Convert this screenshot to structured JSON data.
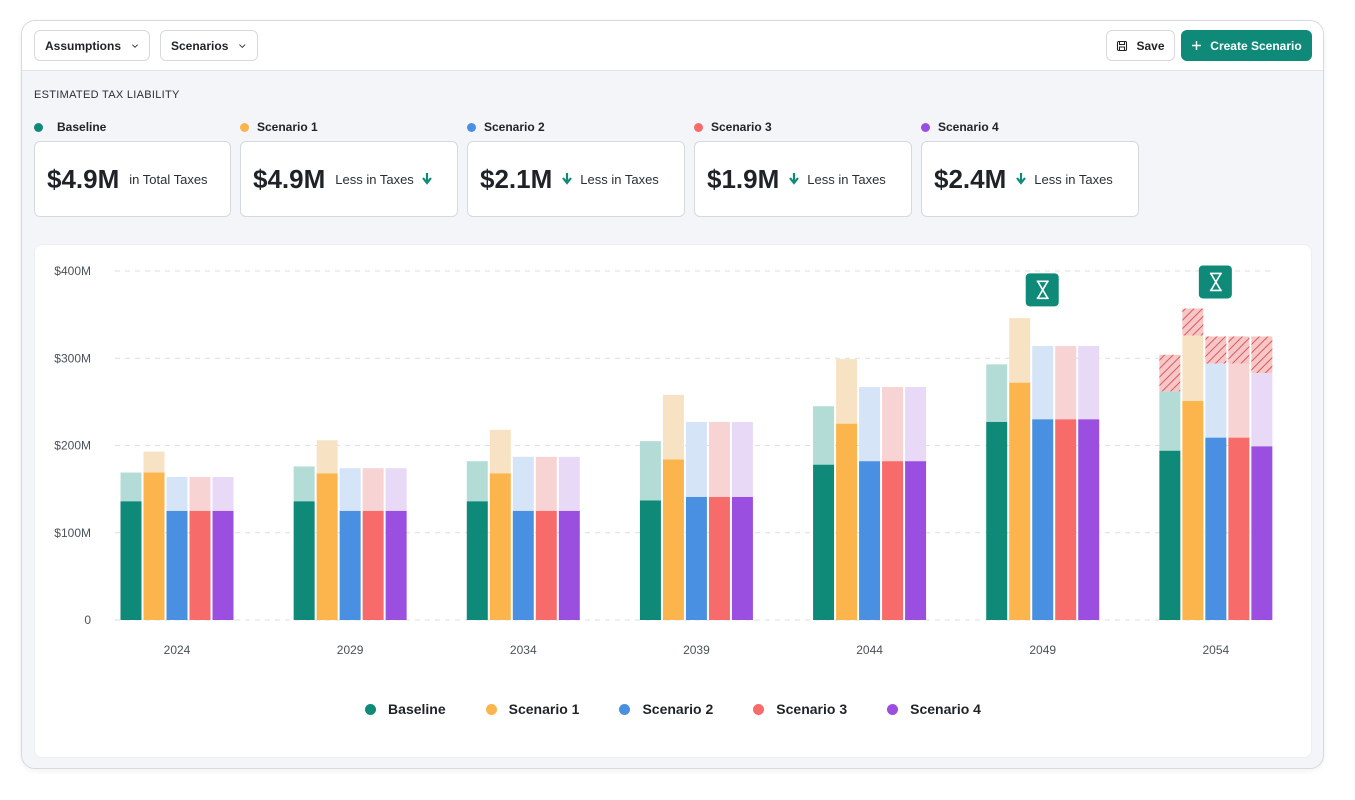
{
  "toolbar": {
    "assumptions_label": "Assumptions",
    "scenarios_label": "Scenarios",
    "save_label": "Save",
    "create_label": "Create Scenario",
    "icons": {
      "dropdown": "chevron-down-icon",
      "save": "floppy-disk-icon",
      "create": "plus-icon"
    }
  },
  "summary": {
    "title": "ESTIMATED TAX LIABILITY",
    "cards": [
      {
        "name": "Baseline",
        "color": "#0f8a78",
        "value": "$4.9M",
        "text": "in Total Taxes",
        "arrow": false
      },
      {
        "name": "Scenario 1",
        "color": "#fbb54c",
        "value": "$4.9M",
        "text": "Less in Taxes",
        "arrow": true
      },
      {
        "name": "Scenario 2",
        "color": "#4a90e2",
        "value": "$2.1M",
        "text": "Less in Taxes",
        "arrow": true
      },
      {
        "name": "Scenario 3",
        "color": "#f86b6b",
        "value": "$1.9M",
        "text": "Less in Taxes",
        "arrow": true
      },
      {
        "name": "Scenario 4",
        "color": "#9b4fe0",
        "value": "$2.4M",
        "text": "Less in Taxes",
        "arrow": true
      }
    ]
  },
  "chart_data": {
    "type": "bar",
    "stacked": true,
    "title": "",
    "xlabel": "",
    "ylabel": "",
    "ylim": [
      0,
      400
    ],
    "y_unit": "M",
    "y_ticks": [
      {
        "value": 0,
        "label": "0"
      },
      {
        "value": 100,
        "label": "$100M"
      },
      {
        "value": 200,
        "label": "$200M"
      },
      {
        "value": 300,
        "label": "$300M"
      },
      {
        "value": 400,
        "label": "$400M"
      }
    ],
    "grid": true,
    "legend_position": "bottom",
    "categories": [
      "2024",
      "2029",
      "2034",
      "2039",
      "2044",
      "2049",
      "2054"
    ],
    "series": [
      {
        "name": "Baseline",
        "color": "#0f8a78",
        "light": "#b4dcd6",
        "solid": [
          136,
          136,
          136,
          137,
          178,
          227,
          194
        ],
        "light_top": [
          169,
          176,
          182,
          205,
          245,
          293,
          262
        ],
        "hatch_top": [
          null,
          null,
          null,
          null,
          null,
          null,
          304
        ]
      },
      {
        "name": "Scenario 1",
        "color": "#fbb54c",
        "light": "#f7e3c4",
        "solid": [
          169,
          168,
          168,
          184,
          225,
          272,
          251
        ],
        "light_top": [
          193,
          206,
          218,
          258,
          299,
          346,
          326
        ],
        "hatch_top": [
          null,
          null,
          null,
          null,
          null,
          null,
          357
        ]
      },
      {
        "name": "Scenario 2",
        "color": "#4a90e2",
        "light": "#d6e4f7",
        "solid": [
          125,
          125,
          125,
          141,
          182,
          230,
          209
        ],
        "light_top": [
          164,
          174,
          187,
          227,
          267,
          314,
          294
        ],
        "hatch_top": [
          null,
          null,
          null,
          null,
          null,
          null,
          325
        ]
      },
      {
        "name": "Scenario 3",
        "color": "#f86b6b",
        "light": "#f8d3d3",
        "solid": [
          125,
          125,
          125,
          141,
          182,
          230,
          209
        ],
        "light_top": [
          164,
          174,
          187,
          227,
          267,
          314,
          294
        ],
        "hatch_top": [
          null,
          null,
          null,
          null,
          null,
          null,
          325
        ]
      },
      {
        "name": "Scenario 4",
        "color": "#9b4fe0",
        "light": "#e8d9f6",
        "solid": [
          125,
          125,
          125,
          141,
          182,
          230,
          199
        ],
        "light_top": [
          164,
          174,
          187,
          227,
          267,
          314,
          283
        ],
        "hatch_top": [
          null,
          null,
          null,
          null,
          null,
          null,
          325
        ]
      }
    ],
    "markers": [
      {
        "category": "2049",
        "icon": "hourglass-icon",
        "value": 379
      },
      {
        "category": "2054",
        "icon": "hourglass-icon",
        "value": 388
      }
    ]
  }
}
